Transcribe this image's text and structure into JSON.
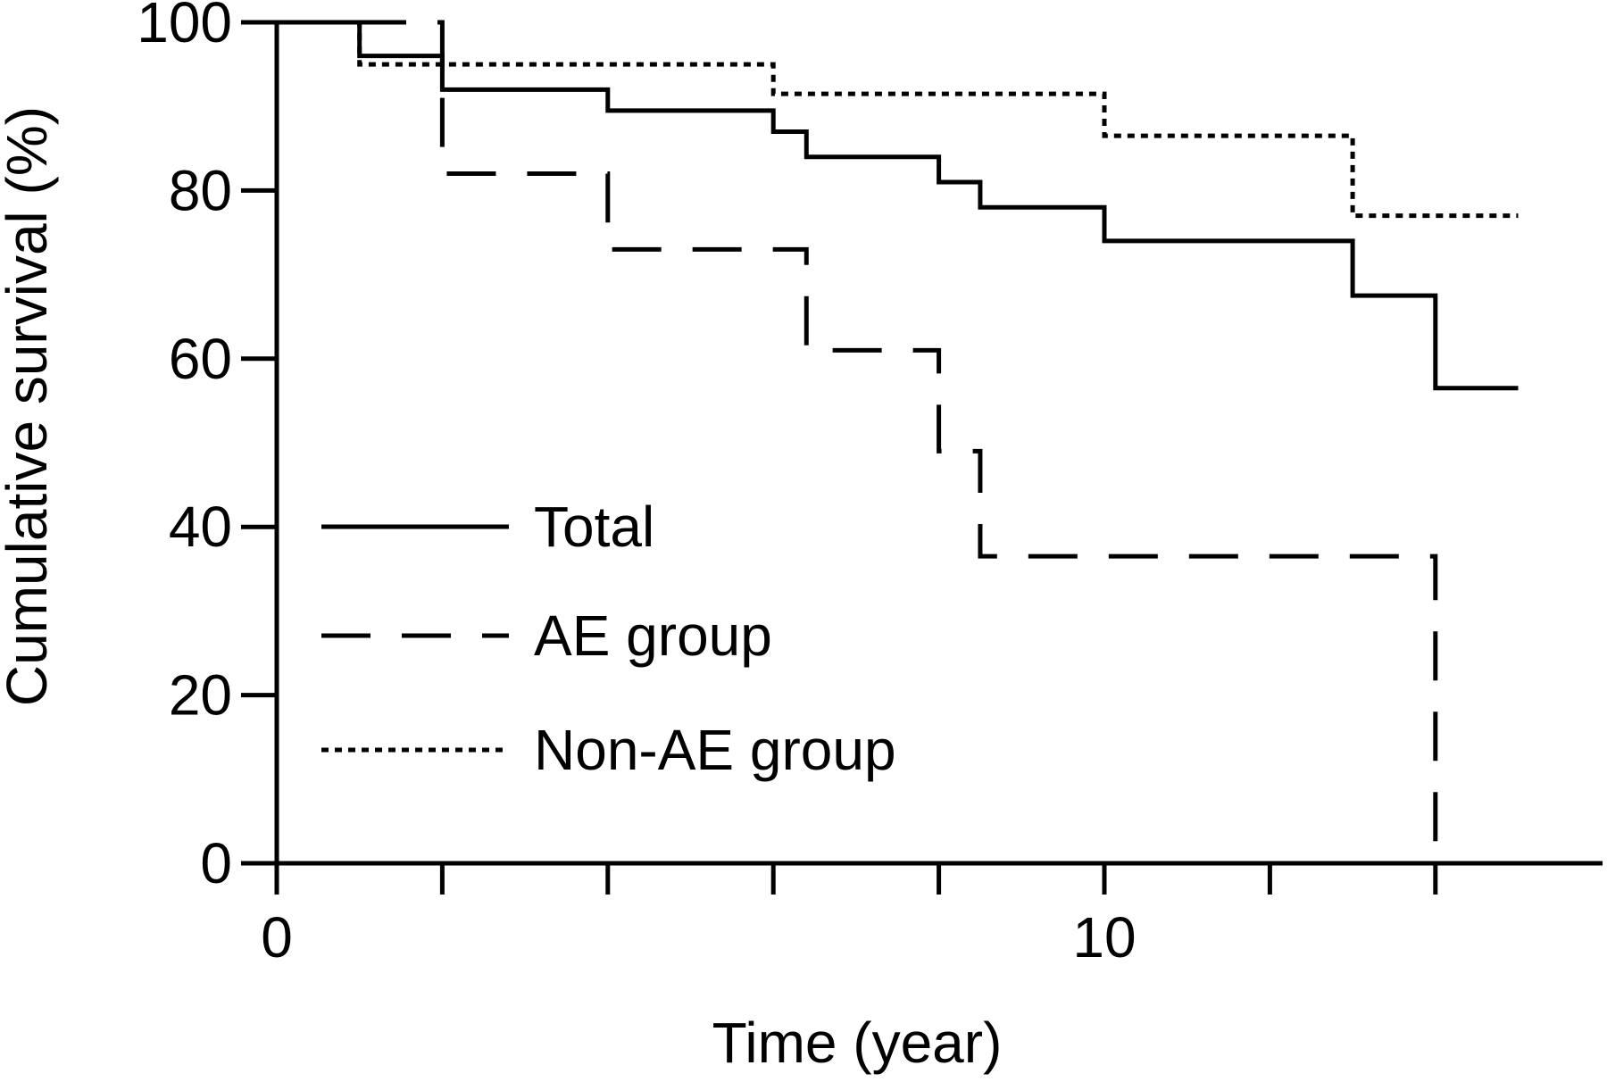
{
  "chart_data": {
    "type": "line",
    "step": true,
    "title": "",
    "xlabel": "Time (year)",
    "ylabel": "Cumulative survival (%)",
    "xlim": [
      0,
      15.6
    ],
    "ylim": [
      0,
      100
    ],
    "x_ticks": [
      0,
      2,
      4,
      6,
      8,
      10,
      12,
      14
    ],
    "x_tick_labels": [
      {
        "value": 0,
        "label": "0"
      },
      {
        "value": 10,
        "label": "10"
      }
    ],
    "y_ticks": [
      0,
      20,
      40,
      60,
      80,
      100
    ],
    "y_tick_labels": [
      "0",
      "20",
      "40",
      "60",
      "80",
      "100"
    ],
    "grid": false,
    "legend_position": "lower-left",
    "series": [
      {
        "name": "Total",
        "style": "solid",
        "points": [
          [
            0,
            100
          ],
          [
            1.0,
            96
          ],
          [
            2.0,
            92
          ],
          [
            4.0,
            89.5
          ],
          [
            6.0,
            87
          ],
          [
            6.4,
            84
          ],
          [
            8.0,
            81
          ],
          [
            8.5,
            78
          ],
          [
            10.0,
            74
          ],
          [
            13.0,
            67.5
          ],
          [
            14.0,
            56.5
          ],
          [
            15.0,
            56.5
          ]
        ]
      },
      {
        "name": "AE group",
        "style": "dashed",
        "points": [
          [
            0,
            100
          ],
          [
            2.0,
            82
          ],
          [
            4.0,
            73
          ],
          [
            6.4,
            61
          ],
          [
            8.0,
            49
          ],
          [
            8.5,
            36.5
          ],
          [
            14.0,
            0
          ]
        ]
      },
      {
        "name": "Non-AE group",
        "style": "dotted",
        "points": [
          [
            0,
            100
          ],
          [
            1.0,
            95
          ],
          [
            6.0,
            91.5
          ],
          [
            10.0,
            86.5
          ],
          [
            13.0,
            77
          ],
          [
            15.0,
            77
          ]
        ]
      }
    ]
  }
}
